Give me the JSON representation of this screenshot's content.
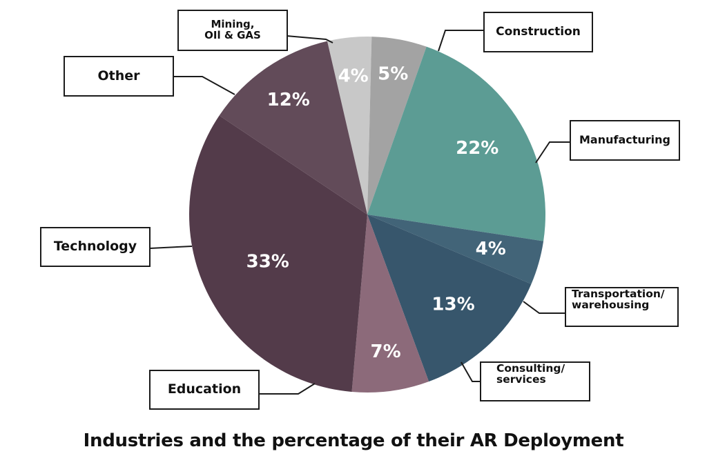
{
  "chart_data": {
    "type": "pie",
    "title": "Industries and the percentage of their AR Deployment",
    "unit": "%",
    "slices": [
      {
        "label": "Mining,\nOIl & GAS",
        "value": 4,
        "display": "4%",
        "color": "#c8c8c8"
      },
      {
        "label": "Construction",
        "value": 5,
        "display": "5%",
        "color": "#a3a3a3"
      },
      {
        "label": "Manufacturing",
        "value": 22,
        "display": "22%",
        "color": "#5c9c94"
      },
      {
        "label": "Transportation/\nwarehousing",
        "value": 4,
        "display": "4%",
        "color": "#426478"
      },
      {
        "label": "Consulting/\nservices",
        "value": 13,
        "display": "13%",
        "color": "#37566c"
      },
      {
        "label": "Education",
        "value": 7,
        "display": "7%",
        "color": "#8c6a7a"
      },
      {
        "label": "Technology",
        "value": 33,
        "display": "33%",
        "color": "#533b4a"
      },
      {
        "label": "Other",
        "value": 12,
        "display": "12%",
        "color": "#624b59"
      }
    ]
  },
  "labels": {
    "mining_line1": "Mining,",
    "mining_line2": "OIl & GAS",
    "construction": "Construction",
    "manufacturing": "Manufacturing",
    "transportation_line1": "Transportation/",
    "transportation_line2": "warehousing",
    "consulting_line1": "Consulting/",
    "consulting_line2": "services",
    "education": "Education",
    "technology": "Technology",
    "other": "Other"
  }
}
